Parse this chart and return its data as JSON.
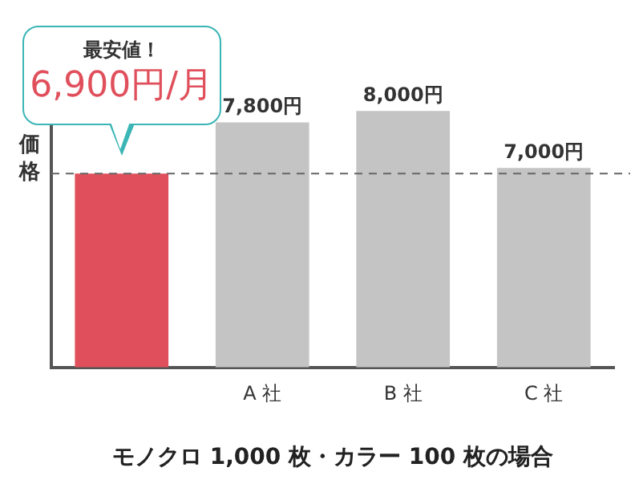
{
  "chart_data": {
    "type": "bar",
    "xlabel": "モノクロ 1,000 枚・カラー 100 枚の場合",
    "ylabel": "価格",
    "categories": [
      null,
      "A 社",
      "B 社",
      "C 社"
    ],
    "values": [
      6900,
      7800,
      8000,
      7000
    ],
    "colors": [
      "#e0505c",
      "#c4c4c4",
      "#c4c4c4",
      "#c4c4c4"
    ],
    "value_labels": [
      "6,900円/月",
      "7,800円",
      "8,000円",
      "7,000円"
    ],
    "annotations": [
      "最安値！"
    ],
    "ylim": [
      3500,
      8200
    ],
    "tick_labels": "x",
    "grid": false,
    "legend": false,
    "ref_lines": [
      {
        "axis": "y",
        "value": 6900,
        "color": "#666666",
        "line_style": "dashed"
      }
    ]
  }
}
